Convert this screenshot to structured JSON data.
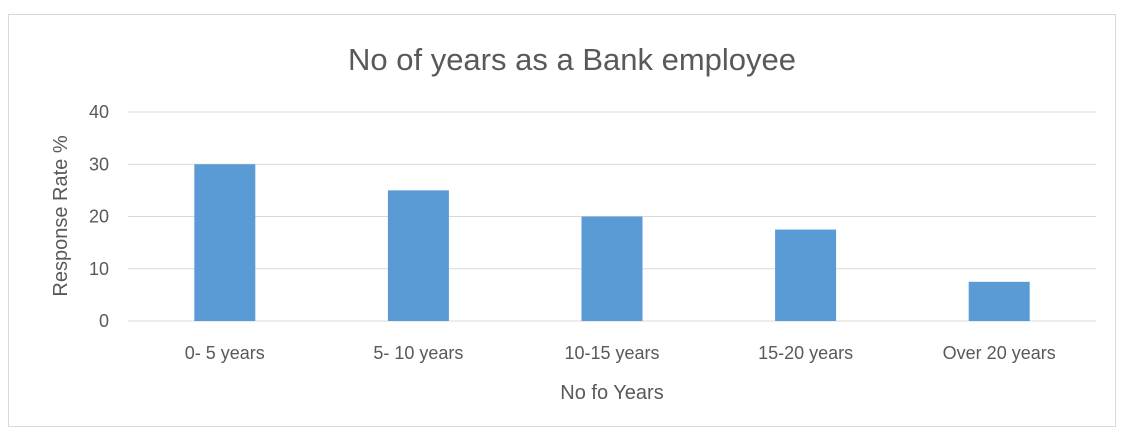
{
  "chart_data": {
    "type": "bar",
    "title": "No of years as a Bank employee",
    "xlabel": "No fo Years",
    "ylabel": "Response Rate  %",
    "categories": [
      "0- 5 years",
      "5- 10 years",
      "10-15 years",
      "15-20 years",
      "Over 20 years"
    ],
    "values": [
      30,
      25,
      20,
      17.5,
      7.5
    ],
    "ylim": [
      0,
      40
    ],
    "yticks": [
      "0",
      "10",
      "20",
      "30",
      "40"
    ],
    "grid": true,
    "bar_color": "#5b9bd5"
  }
}
